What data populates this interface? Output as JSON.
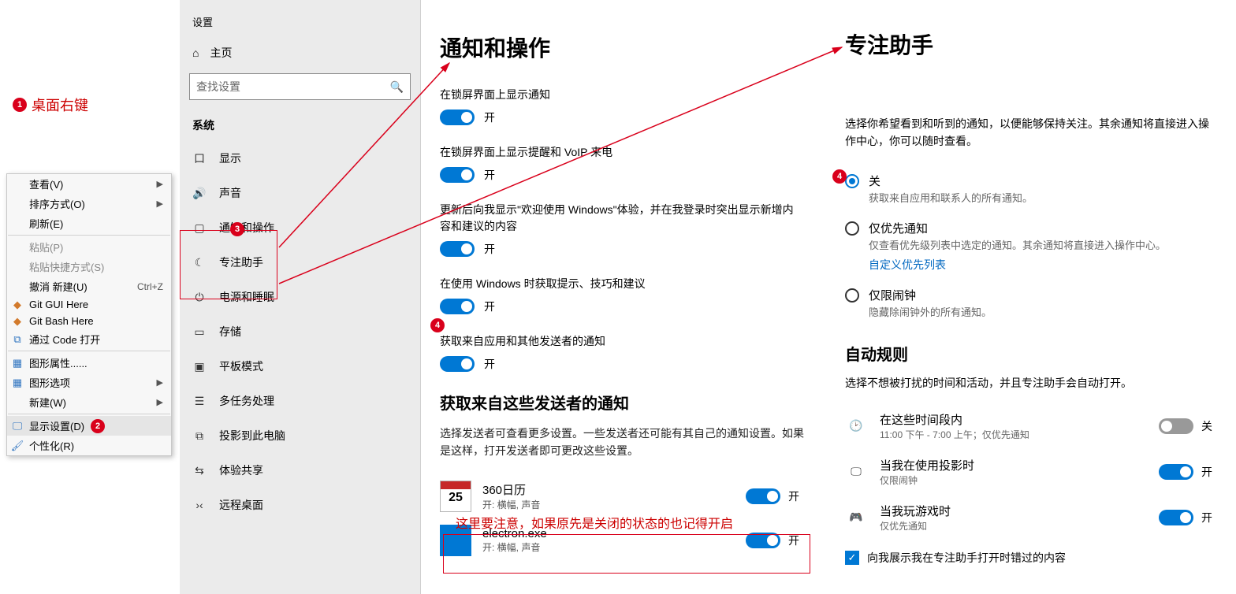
{
  "colors": {
    "accent": "#0078d4",
    "annotation": "#d9001b",
    "annotation_text": "#c00",
    "link": "#0067c0"
  },
  "annotations": {
    "a1": {
      "num": "1",
      "label": "桌面右键"
    },
    "a2": {
      "num": "2"
    },
    "a3": {
      "num": "3"
    },
    "a4": {
      "num": "4"
    },
    "note": "这里要注意，如果原先是关闭的状态的也记得开启"
  },
  "context_menu": {
    "items": [
      {
        "label": "查看(V)",
        "type": "sub"
      },
      {
        "label": "排序方式(O)",
        "type": "sub"
      },
      {
        "label": "刷新(E)",
        "type": "plain"
      },
      {
        "type": "sep"
      },
      {
        "label": "粘贴(P)",
        "type": "disabled"
      },
      {
        "label": "粘贴快捷方式(S)",
        "type": "disabled"
      },
      {
        "label": "撤消 新建(U)",
        "type": "shortcut",
        "shortcut": "Ctrl+Z"
      },
      {
        "label": "Git GUI Here",
        "type": "icon",
        "icon": "git"
      },
      {
        "label": "Git Bash Here",
        "type": "icon",
        "icon": "git"
      },
      {
        "label": "通过 Code 打开",
        "type": "icon",
        "icon": "vscode"
      },
      {
        "type": "sep"
      },
      {
        "label": "图形属性......",
        "type": "icon",
        "icon": "intel"
      },
      {
        "label": "图形选项",
        "type": "sub-icon",
        "icon": "intel"
      },
      {
        "label": "新建(W)",
        "type": "sub"
      },
      {
        "type": "sep"
      },
      {
        "label": "显示设置(D)",
        "type": "icon-highlight",
        "icon": "display",
        "badge": "2"
      },
      {
        "label": "个性化(R)",
        "type": "icon",
        "icon": "personalize"
      }
    ]
  },
  "settings": {
    "window_title": "设置",
    "home": "主页",
    "search_placeholder": "查找设置",
    "section": "系统",
    "nav": [
      {
        "label": "显示",
        "icon": "口"
      },
      {
        "label": "声音",
        "icon": "🔊"
      },
      {
        "label": "通知和操作",
        "icon": "▢"
      },
      {
        "label": "专注助手",
        "icon": "☾"
      },
      {
        "label": "电源和睡眠",
        "icon": "⏻"
      },
      {
        "label": "存储",
        "icon": "▭"
      },
      {
        "label": "平板模式",
        "icon": "▣"
      },
      {
        "label": "多任务处理",
        "icon": "☰"
      },
      {
        "label": "投影到此电脑",
        "icon": "⧉"
      },
      {
        "label": "体验共享",
        "icon": "⇆"
      },
      {
        "label": "远程桌面",
        "icon": "›‹"
      }
    ],
    "page": {
      "title": "通知和操作",
      "options": [
        {
          "label": "在锁屏界面上显示通知",
          "on": true,
          "state": "开"
        },
        {
          "label": "在锁屏界面上显示提醒和 VoIP 来电",
          "on": true,
          "state": "开"
        },
        {
          "label": "更新后向我显示\"欢迎使用 Windows\"体验，并在我登录时突出显示新增内容和建议的内容",
          "on": true,
          "state": "开"
        },
        {
          "label": "在使用 Windows 时获取提示、技巧和建议",
          "on": true,
          "state": "开"
        },
        {
          "label": "获取来自应用和其他发送者的通知",
          "on": true,
          "state": "开"
        }
      ],
      "senders_title": "获取来自这些发送者的通知",
      "senders_desc": "选择发送者可查看更多设置。一些发送者还可能有其自己的通知设置。如果是这样，打开发送者即可更改这些设置。",
      "apps": [
        {
          "name": "360日历",
          "sub": "开: 横幅, 声音",
          "kind": "calendar",
          "day": "25",
          "on": true,
          "state": "开"
        },
        {
          "name": "electron.exe",
          "sub": "开: 横幅, 声音",
          "kind": "blue",
          "on": true,
          "state": "开"
        }
      ]
    }
  },
  "focus": {
    "title": "专注助手",
    "intro": "选择你希望看到和听到的通知，以便能够保持关注。其余通知将直接进入操作中心，你可以随时查看。",
    "options": [
      {
        "title": "关",
        "sub": "获取来自应用和联系人的所有通知。",
        "selected": true
      },
      {
        "title": "仅优先通知",
        "sub": "仅查看优先级列表中选定的通知。其余通知将直接进入操作中心。",
        "link": "自定义优先列表",
        "selected": false
      },
      {
        "title": "仅限闹钟",
        "sub": "隐藏除闹钟外的所有通知。",
        "selected": false
      }
    ],
    "rules_title": "自动规则",
    "rules_desc": "选择不想被打扰的时间和活动，并且专注助手会自动打开。",
    "rules": [
      {
        "title": "在这些时间段内",
        "sub": "11:00 下午 - 7:00 上午；仅优先通知",
        "icon": "clock",
        "on": false,
        "state": "关"
      },
      {
        "title": "当我在使用投影时",
        "sub": "仅限闹钟",
        "icon": "monitor",
        "on": true,
        "state": "开"
      },
      {
        "title": "当我玩游戏时",
        "sub": "仅优先通知",
        "icon": "game",
        "on": true,
        "state": "开"
      }
    ],
    "checkbox": "向我展示我在专注助手打开时错过的内容"
  }
}
